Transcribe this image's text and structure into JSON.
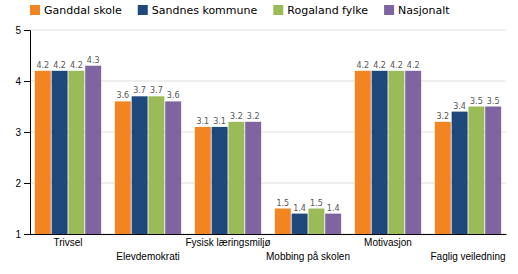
{
  "chart_data": {
    "type": "bar",
    "categories": [
      "Trivsel",
      "Elevdemokrati",
      "Fysisk læringsmiljø",
      "Mobbing på skolen",
      "Motivasjon",
      "Faglig veiledning"
    ],
    "series": [
      {
        "name": "Ganddal skole",
        "color": "#F28522",
        "values": [
          4.2,
          3.6,
          3.1,
          1.5,
          4.2,
          3.2
        ]
      },
      {
        "name": "Sandnes kommune",
        "color": "#1F497D",
        "values": [
          4.2,
          3.7,
          3.1,
          1.4,
          4.2,
          3.4
        ]
      },
      {
        "name": "Rogaland fylke",
        "color": "#9BBB59",
        "values": [
          4.2,
          3.7,
          3.2,
          1.5,
          4.2,
          3.5
        ]
      },
      {
        "name": "Nasjonalt",
        "color": "#8064A2",
        "values": [
          4.3,
          3.6,
          3.2,
          1.4,
          4.2,
          3.5
        ]
      }
    ],
    "ylim": [
      1,
      5
    ],
    "yticks": [
      1,
      2,
      3,
      4,
      5
    ],
    "grid": true,
    "data_labels": true,
    "legend": "top"
  }
}
